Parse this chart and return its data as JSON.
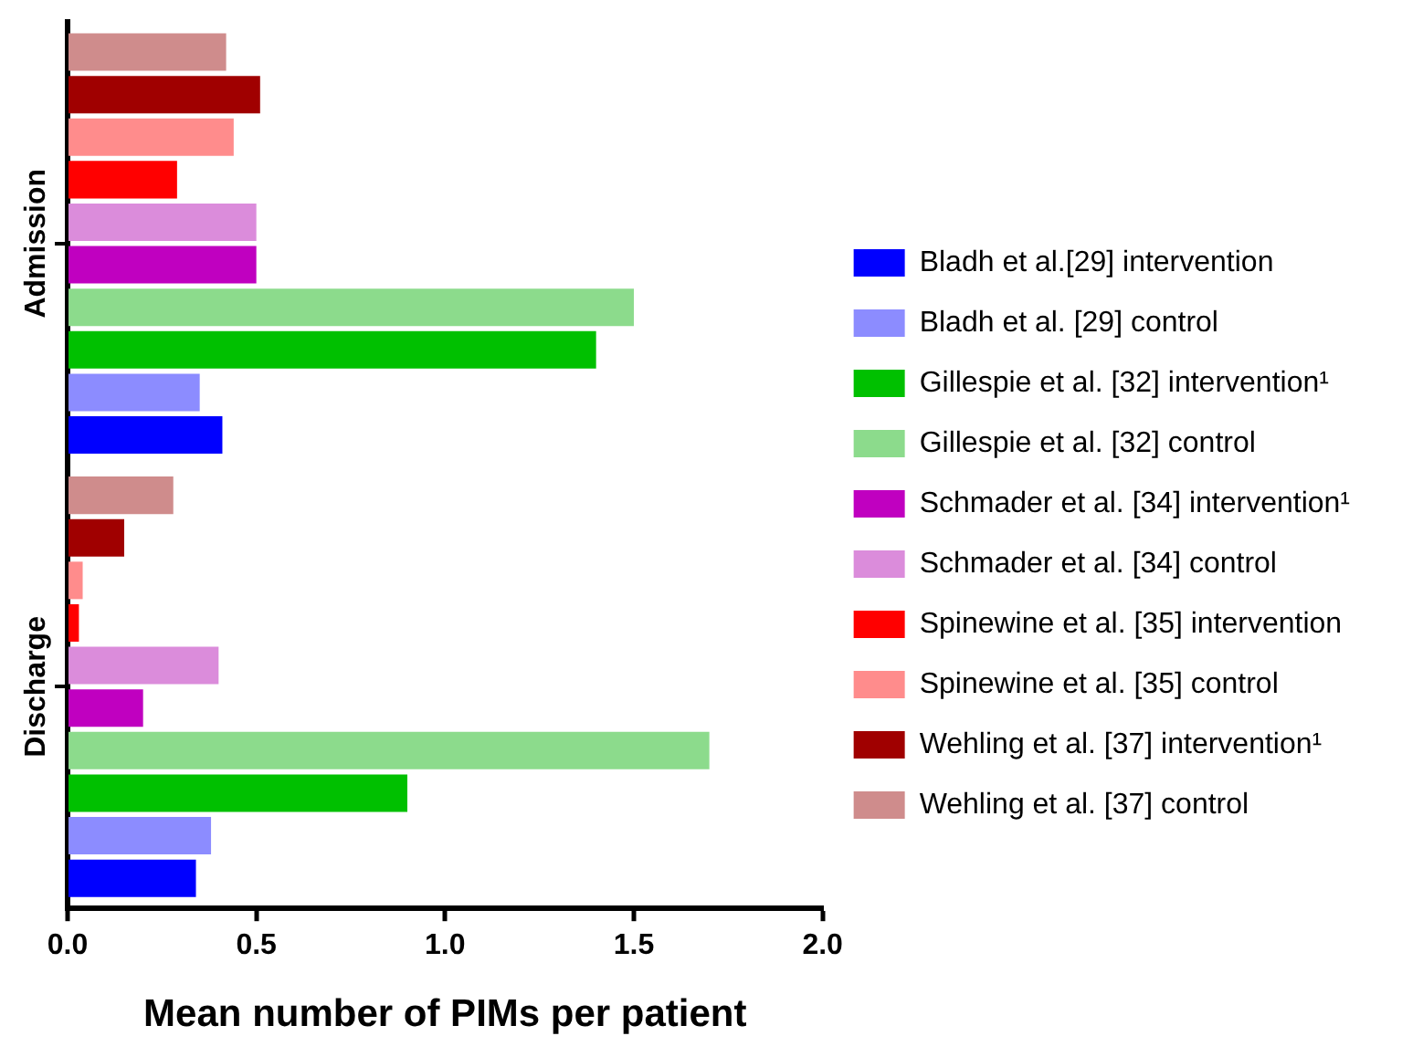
{
  "chart_data": {
    "type": "bar",
    "orientation": "horizontal",
    "xlabel": "Mean number of PIMs per patient",
    "categories": [
      "Admission",
      "Discharge"
    ],
    "series": [
      {
        "name": "Bladh et al.[29] intervention",
        "color": "#0000ff",
        "values": [
          0.41,
          0.34
        ]
      },
      {
        "name": "Bladh et al. [29] control",
        "color": "#8c8cff",
        "values": [
          0.35,
          0.38
        ]
      },
      {
        "name": "Gillespie et al. [32] intervention¹",
        "color": "#00c000",
        "values": [
          1.4,
          0.9
        ]
      },
      {
        "name": "Gillespie et al. [32] control",
        "color": "#8cdb8c",
        "values": [
          1.5,
          1.7
        ]
      },
      {
        "name": "Schmader et al. [34] intervention¹",
        "color": "#c000c0",
        "values": [
          0.5,
          0.2
        ]
      },
      {
        "name": "Schmader et al. [34] control",
        "color": "#db8cdb",
        "values": [
          0.5,
          0.4
        ]
      },
      {
        "name": "Spinewine et al. [35] intervention",
        "color": "#ff0000",
        "values": [
          0.29,
          0.03
        ]
      },
      {
        "name": "Spinewine et al. [35] control",
        "color": "#ff8c8c",
        "values": [
          0.44,
          0.04
        ]
      },
      {
        "name": "Wehling et al. [37] intervention¹",
        "color": "#a00000",
        "values": [
          0.51,
          0.15
        ]
      },
      {
        "name": "Wehling et al. [37] control",
        "color": "#cf8c8c",
        "values": [
          0.42,
          0.28
        ]
      }
    ],
    "xlim": [
      0,
      2
    ],
    "xticks": [
      {
        "value": 0,
        "label": "0.0"
      },
      0.5,
      {
        "value": 1,
        "label": "1.0"
      },
      1.5,
      {
        "value": 2,
        "label": "2.0"
      }
    ],
    "grid": false,
    "legend": "right"
  }
}
